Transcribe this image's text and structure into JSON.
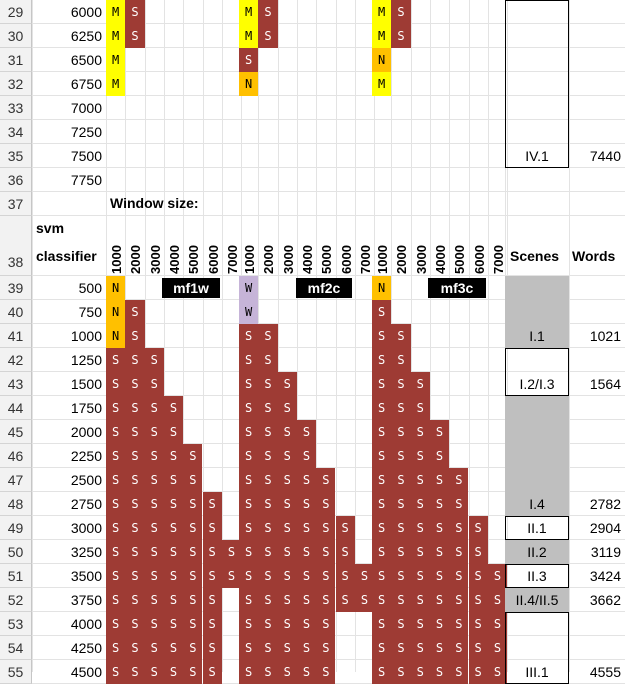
{
  "rows": [
    {
      "n": "29",
      "v": "6000"
    },
    {
      "n": "30",
      "v": "6250"
    },
    {
      "n": "31",
      "v": "6500"
    },
    {
      "n": "32",
      "v": "6750"
    },
    {
      "n": "33",
      "v": "7000"
    },
    {
      "n": "34",
      "v": "7250"
    },
    {
      "n": "35",
      "v": "7500"
    },
    {
      "n": "36",
      "v": "7750"
    },
    {
      "n": "37",
      "v": ""
    },
    {
      "n": "38",
      "v": ""
    },
    {
      "n": "39",
      "v": "500"
    },
    {
      "n": "40",
      "v": "750"
    },
    {
      "n": "41",
      "v": "1000"
    },
    {
      "n": "42",
      "v": "1250"
    },
    {
      "n": "43",
      "v": "1500"
    },
    {
      "n": "44",
      "v": "1750"
    },
    {
      "n": "45",
      "v": "2000"
    },
    {
      "n": "46",
      "v": "2250"
    },
    {
      "n": "47",
      "v": "2500"
    },
    {
      "n": "48",
      "v": "2750"
    },
    {
      "n": "49",
      "v": "3000"
    },
    {
      "n": "50",
      "v": "3250"
    },
    {
      "n": "51",
      "v": "3500"
    },
    {
      "n": "52",
      "v": "3750"
    },
    {
      "n": "53",
      "v": "4000"
    },
    {
      "n": "54",
      "v": "4250"
    },
    {
      "n": "55",
      "v": "4500"
    }
  ],
  "header": {
    "window_size": "Window size:",
    "svm": "svm",
    "classifier": "classifier",
    "scenes": "Scenes",
    "words": "Words",
    "window_values": [
      "1000",
      "2000",
      "3000",
      "4000",
      "5000",
      "6000",
      "7000"
    ],
    "groups": [
      "mf1w",
      "mf2c",
      "mf3c"
    ]
  },
  "colors": {
    "S": "#9e3b34",
    "M": "#ffff00",
    "N": "#ffc000",
    "W": "#c6b4d8",
    "gray": "#bfbfbf"
  },
  "groups_cells": [
    {
      "name": "mf1w",
      "rows": {
        "29": "MS",
        "30": "MS",
        "31": "M",
        "32": "M",
        "39": "N",
        "40": "NS",
        "41": "NS",
        "42": "SSS",
        "43": "SSS",
        "44": "SSSS",
        "45": "SSSS",
        "46": "SSSSS",
        "47": "SSSSS",
        "48": "SSSSSS",
        "49": "SSSSSS",
        "50": "SSSSSSS",
        "51": "SSSSSSS",
        "52": "SSSSSS",
        "53": "SSSSSS",
        "54": "SSSSSS",
        "55": "SSSSSS"
      }
    },
    {
      "name": "mf2c",
      "rows": {
        "29": "MS",
        "30": "MS",
        "31": "S",
        "32": "N",
        "39": "W",
        "40": "W",
        "41": "SS",
        "42": "SS",
        "43": "SSS",
        "44": "SSS",
        "45": "SSSS",
        "46": "SSSS",
        "47": "SSSSS",
        "48": "SSSSS",
        "49": "SSSSSS",
        "50": "SSSSSS",
        "51": "SSSSSSS",
        "52": "SSSSSSS",
        "53": "SSSSS",
        "54": "SSSSS",
        "55": "SSSSS"
      }
    },
    {
      "name": "mf3c",
      "rows": {
        "29": "MS",
        "30": "MS",
        "31": "N",
        "32": "M",
        "39": "N",
        "40": "S",
        "41": "SS",
        "42": "SS",
        "43": "SSS",
        "44": "SSS",
        "45": "SSSS",
        "46": "SSSS",
        "47": "SSSSS",
        "48": "SSSSS",
        "49": "SSSSSS",
        "50": "SSSSSS",
        "51": "SSSSSSS",
        "52": "SSSSSSS",
        "53": "SSSSSSS",
        "54": "SSSSSSS",
        "55": "SSSSSSS"
      }
    }
  ],
  "scenes": [
    {
      "row": "35",
      "label": "IV.1",
      "words": "7440",
      "gray": false,
      "boxed": true
    },
    {
      "row": "41",
      "label": "I.1",
      "words": "1021",
      "gray": true,
      "boxed": false
    },
    {
      "row": "43",
      "label": "I.2/I.3",
      "words": "1564",
      "gray": false,
      "boxed": true
    },
    {
      "row": "48",
      "label": "I.4",
      "words": "2782",
      "gray": true,
      "boxed": false
    },
    {
      "row": "49",
      "label": "II.1",
      "words": "2904",
      "gray": false,
      "boxed": true
    },
    {
      "row": "50",
      "label": "II.2",
      "words": "3119",
      "gray": true,
      "boxed": false
    },
    {
      "row": "51",
      "label": "II.3",
      "words": "3424",
      "gray": false,
      "boxed": true
    },
    {
      "row": "52",
      "label": "II.4/II.5",
      "words": "3662",
      "gray": true,
      "boxed": false
    },
    {
      "row": "55",
      "label": "III.1",
      "words": "4555",
      "gray": false,
      "boxed": true
    }
  ]
}
